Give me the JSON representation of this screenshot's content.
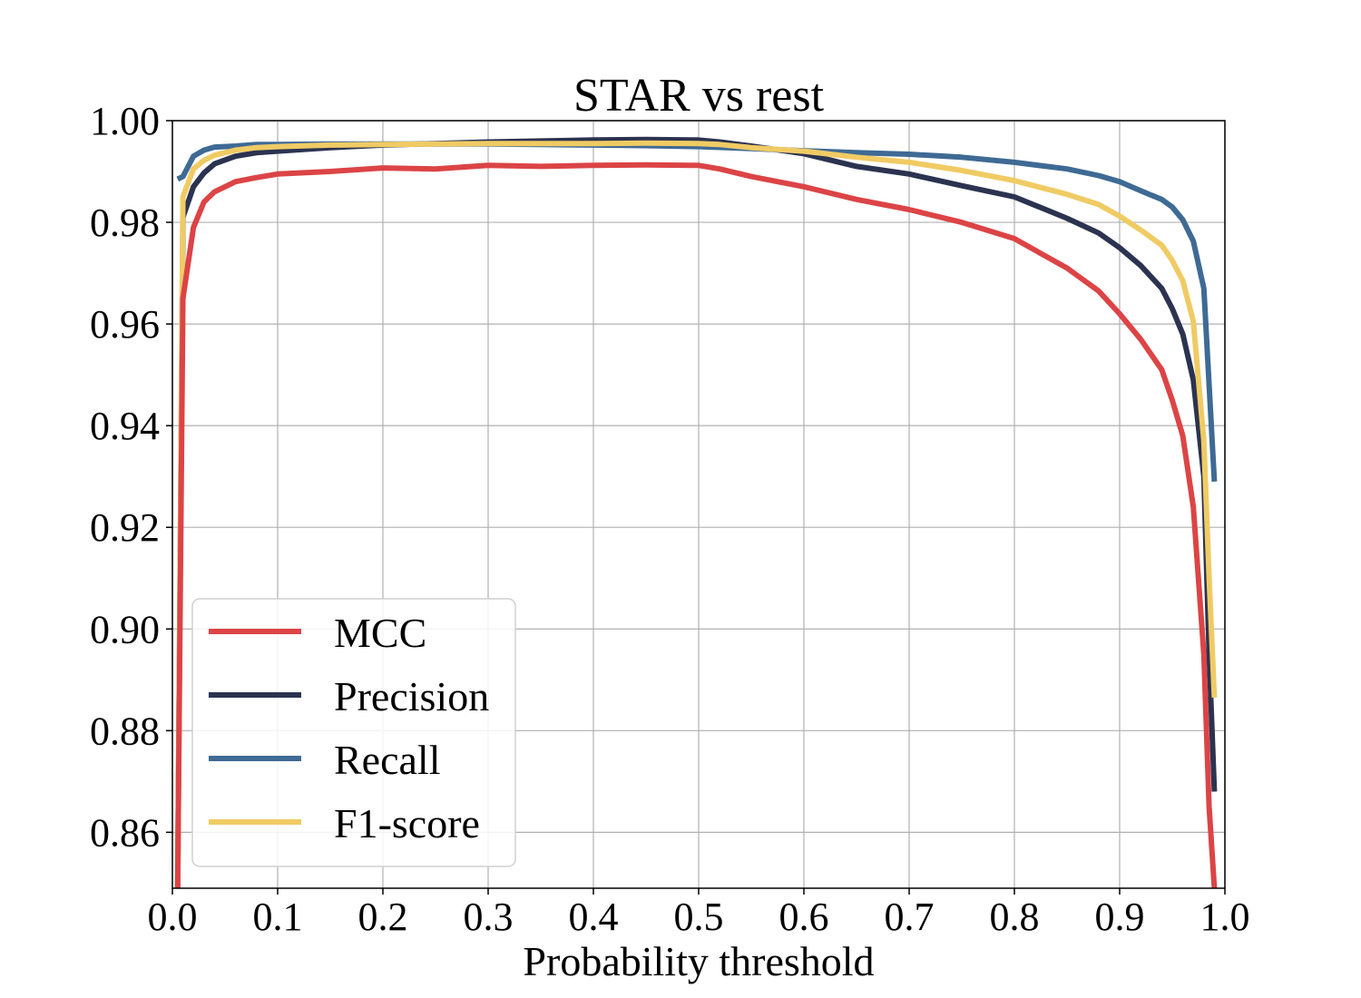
{
  "chart_data": {
    "type": "line",
    "title": "STAR vs rest",
    "xlabel": "Probability threshold",
    "ylabel": "",
    "xlim": [
      0.0,
      1.0
    ],
    "ylim": [
      0.849,
      1.0
    ],
    "xticks": [
      0.0,
      0.1,
      0.2,
      0.3,
      0.4,
      0.5,
      0.6,
      0.7,
      0.8,
      0.9,
      1.0
    ],
    "xtick_labels": [
      "0.0",
      "0.1",
      "0.2",
      "0.3",
      "0.4",
      "0.5",
      "0.6",
      "0.7",
      "0.8",
      "0.9",
      "1.0"
    ],
    "yticks": [
      0.86,
      0.88,
      0.9,
      0.92,
      0.94,
      0.96,
      0.98,
      1.0
    ],
    "ytick_labels": [
      "0.86",
      "0.88",
      "0.90",
      "0.92",
      "0.94",
      "0.96",
      "0.98",
      "1.00"
    ],
    "grid": true,
    "legend_position": "lower-left",
    "series": [
      {
        "name": "MCC",
        "color": "#dc4446",
        "x": [
          0.005,
          0.01,
          0.02,
          0.03,
          0.04,
          0.06,
          0.08,
          0.1,
          0.15,
          0.2,
          0.25,
          0.3,
          0.35,
          0.4,
          0.45,
          0.5,
          0.52,
          0.55,
          0.6,
          0.65,
          0.7,
          0.75,
          0.8,
          0.85,
          0.88,
          0.9,
          0.92,
          0.94,
          0.95,
          0.96,
          0.97,
          0.98,
          0.985,
          0.99
        ],
        "values": [
          0.849,
          0.965,
          0.979,
          0.984,
          0.986,
          0.988,
          0.9888,
          0.9895,
          0.99,
          0.9907,
          0.9905,
          0.9912,
          0.991,
          0.9912,
          0.9913,
          0.9912,
          0.9905,
          0.989,
          0.987,
          0.9845,
          0.9825,
          0.98,
          0.9768,
          0.971,
          0.9665,
          0.962,
          0.957,
          0.951,
          0.945,
          0.938,
          0.924,
          0.895,
          0.865,
          0.849
        ]
      },
      {
        "name": "Precision",
        "color": "#2b3350",
        "x": [
          0.005,
          0.01,
          0.02,
          0.03,
          0.04,
          0.06,
          0.08,
          0.1,
          0.15,
          0.2,
          0.25,
          0.3,
          0.35,
          0.4,
          0.45,
          0.5,
          0.52,
          0.55,
          0.6,
          0.65,
          0.7,
          0.75,
          0.8,
          0.85,
          0.88,
          0.9,
          0.92,
          0.94,
          0.95,
          0.96,
          0.97,
          0.98,
          0.985,
          0.99
        ],
        "values": [
          0.849,
          0.981,
          0.987,
          0.9897,
          0.9915,
          0.993,
          0.9937,
          0.994,
          0.9947,
          0.9952,
          0.9955,
          0.9958,
          0.996,
          0.9962,
          0.9963,
          0.9962,
          0.9958,
          0.995,
          0.9935,
          0.991,
          0.9895,
          0.9872,
          0.985,
          0.9808,
          0.9779,
          0.975,
          0.9715,
          0.967,
          0.963,
          0.958,
          0.949,
          0.93,
          0.895,
          0.868
        ]
      },
      {
        "name": "Recall",
        "color": "#3e6a94",
        "x": [
          0.005,
          0.01,
          0.02,
          0.03,
          0.04,
          0.06,
          0.08,
          0.1,
          0.15,
          0.2,
          0.25,
          0.3,
          0.35,
          0.4,
          0.45,
          0.5,
          0.55,
          0.6,
          0.65,
          0.7,
          0.75,
          0.8,
          0.85,
          0.88,
          0.9,
          0.92,
          0.94,
          0.95,
          0.96,
          0.97,
          0.98,
          0.99
        ],
        "values": [
          0.9885,
          0.989,
          0.993,
          0.9942,
          0.9948,
          0.995,
          0.9953,
          0.9953,
          0.9954,
          0.9954,
          0.9954,
          0.9954,
          0.9953,
          0.9952,
          0.9951,
          0.9949,
          0.9945,
          0.9941,
          0.9937,
          0.9934,
          0.9928,
          0.9918,
          0.9905,
          0.9892,
          0.988,
          0.9862,
          0.9845,
          0.983,
          0.9805,
          0.9763,
          0.967,
          0.929
        ]
      },
      {
        "name": "F1-score",
        "color": "#f0cb64",
        "x": [
          0.005,
          0.01,
          0.02,
          0.03,
          0.04,
          0.06,
          0.08,
          0.1,
          0.15,
          0.2,
          0.25,
          0.3,
          0.35,
          0.4,
          0.45,
          0.5,
          0.52,
          0.55,
          0.6,
          0.65,
          0.7,
          0.75,
          0.8,
          0.85,
          0.88,
          0.9,
          0.92,
          0.94,
          0.95,
          0.96,
          0.97,
          0.98,
          0.985,
          0.99
        ],
        "values": [
          0.849,
          0.985,
          0.9905,
          0.9922,
          0.9932,
          0.9942,
          0.9947,
          0.9949,
          0.9952,
          0.9953,
          0.9954,
          0.9955,
          0.9955,
          0.9955,
          0.9956,
          0.9955,
          0.9953,
          0.9947,
          0.994,
          0.9928,
          0.9918,
          0.9902,
          0.9882,
          0.9855,
          0.9835,
          0.9812,
          0.9785,
          0.9755,
          0.9725,
          0.9685,
          0.9605,
          0.937,
          0.91,
          0.8865
        ]
      }
    ]
  }
}
